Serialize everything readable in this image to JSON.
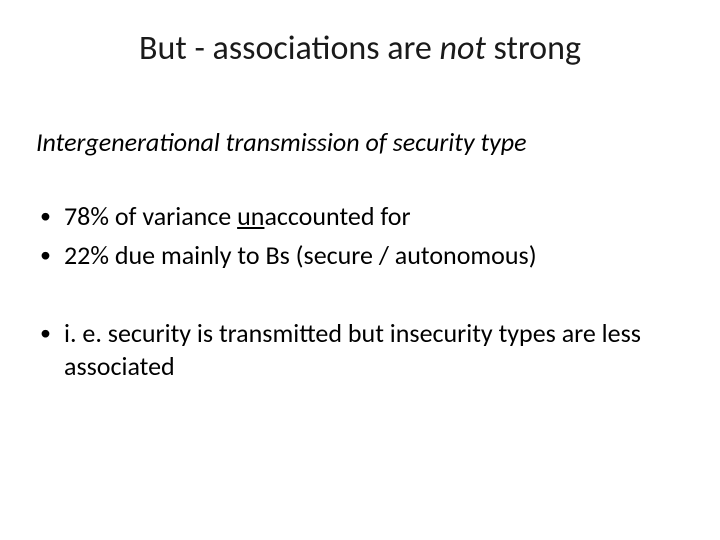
{
  "colors": {
    "background": "#ffffff",
    "text": "#000000",
    "title_text": "#1a1a1a"
  },
  "typography": {
    "title_fontsize_pt": 34,
    "subtitle_fontsize_pt": 26,
    "body_fontsize_pt": 26,
    "font_family": "Calibri"
  },
  "title": {
    "pre": "But - associations are ",
    "not": "not",
    "post": " strong"
  },
  "subtitle": "Intergenerational transmission of security type",
  "bullets": {
    "b1_pre": "78% of variance ",
    "b1_un": "un",
    "b1_post": "accounted for",
    "b2": "22% due mainly to Bs  (secure / autonomous)",
    "b3": "i. e. security is transmitted but insecurity types are less associated"
  }
}
